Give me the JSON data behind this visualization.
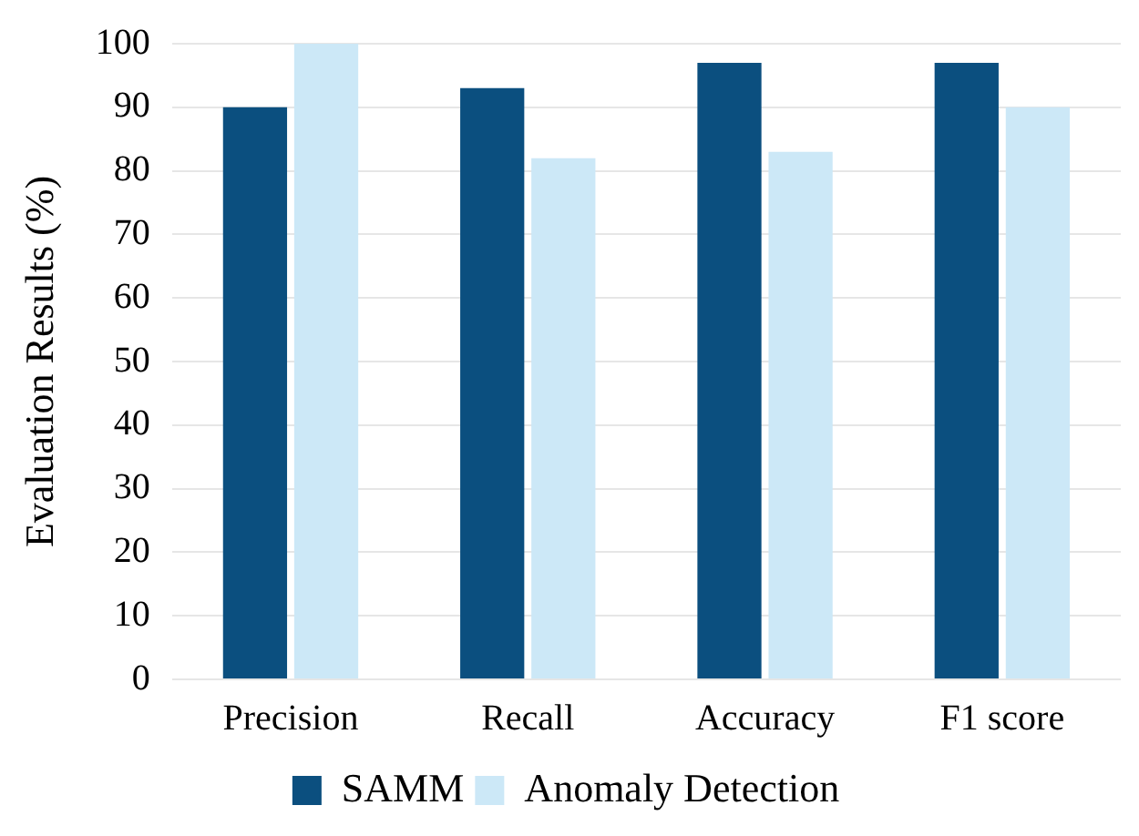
{
  "chart_data": {
    "type": "bar",
    "ylabel": "Evaluation Results (%)",
    "categories": [
      "Precision",
      "Recall",
      "Accuracy",
      "F1 score"
    ],
    "series": [
      {
        "name": "SAMM",
        "color": "#0b4f7f",
        "values": [
          90,
          93,
          97,
          97
        ]
      },
      {
        "name": "Anomaly Detection",
        "color": "#cce8f7",
        "values": [
          100,
          82,
          83,
          90
        ]
      }
    ],
    "ylim": [
      0,
      100
    ],
    "yticks": [
      0,
      10,
      20,
      30,
      40,
      50,
      60,
      70,
      80,
      90,
      100
    ],
    "grid": "y",
    "legend": "bottom"
  }
}
